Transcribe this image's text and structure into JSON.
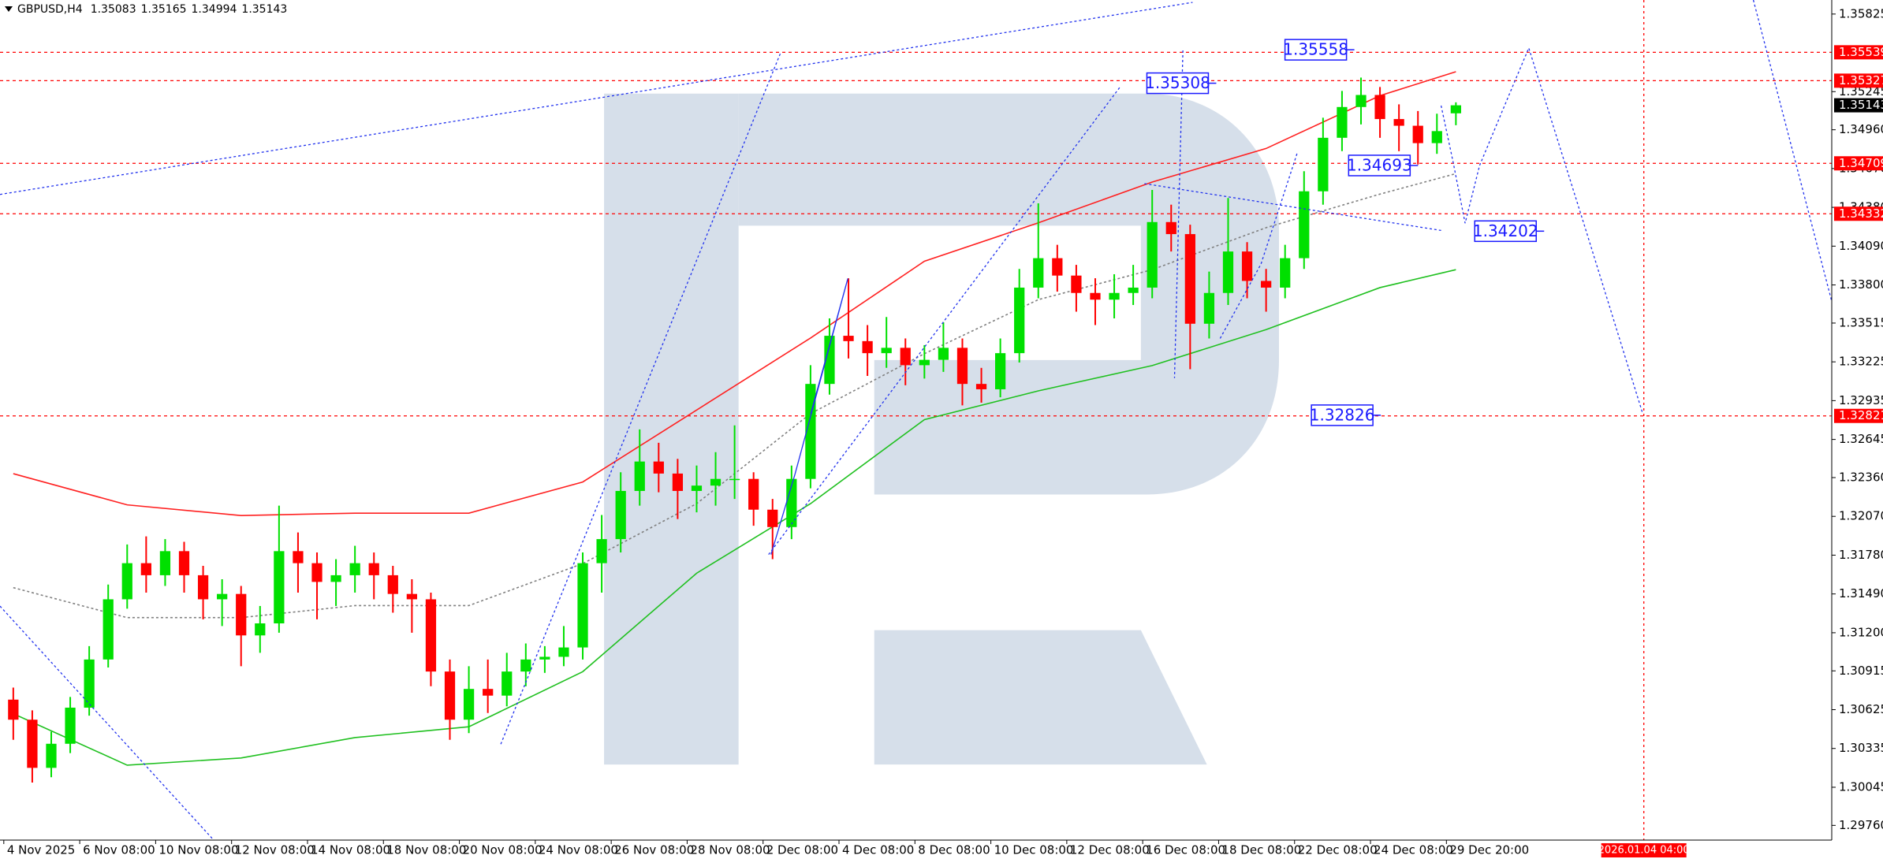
{
  "chart_data": {
    "type": "candlestick",
    "symbol": "GBPUSD,H4",
    "colors": {
      "up": "#00e000",
      "down": "#ff0000",
      "level": "#ff0000",
      "annotation": "#1a1aff"
    },
    "grid": false,
    "xlim": [
      -0.7,
      95.8
    ],
    "ylim": [
      1.2965,
      1.3593
    ],
    "open": [
      1.307,
      1.3055,
      1.3019,
      1.3037,
      1.3064,
      1.31,
      1.3145,
      1.3172,
      1.3163,
      1.3181,
      1.3163,
      1.3145,
      1.3149,
      1.3118,
      1.3127,
      1.3181,
      1.3172,
      1.3158,
      1.3163,
      1.3172,
      1.3163,
      1.3149,
      1.3145,
      1.3091,
      1.3055,
      1.3078,
      1.3073,
      1.3091,
      1.31,
      1.3102,
      1.3109,
      1.3172,
      1.319,
      1.3226,
      1.3248,
      1.3239,
      1.3226,
      1.323,
      1.3235,
      1.3235,
      1.3212,
      1.3199,
      1.3235,
      1.3306,
      1.3342,
      1.3338,
      1.3329,
      1.3333,
      1.332,
      1.3324,
      1.3333,
      1.3306,
      1.3302,
      1.3329,
      1.3378,
      1.34,
      1.3387,
      1.3374,
      1.3369,
      1.3374,
      1.3378,
      1.3427,
      1.3418,
      1.3351,
      1.3374,
      1.3405,
      1.3383,
      1.3378,
      1.34,
      1.345,
      1.349,
      1.3513,
      1.3522,
      1.3504,
      1.3499,
      1.3486,
      1.35083
    ],
    "high": [
      1.3079,
      1.3062,
      1.3046,
      1.3072,
      1.311,
      1.3156,
      1.3186,
      1.3192,
      1.319,
      1.3188,
      1.317,
      1.316,
      1.3155,
      1.314,
      1.3215,
      1.3195,
      1.318,
      1.3175,
      1.3185,
      1.318,
      1.317,
      1.316,
      1.315,
      1.31,
      1.3095,
      1.31,
      1.3105,
      1.3112,
      1.311,
      1.3125,
      1.318,
      1.3208,
      1.324,
      1.3272,
      1.3262,
      1.325,
      1.3245,
      1.3255,
      1.3275,
      1.324,
      1.322,
      1.3245,
      1.332,
      1.3355,
      1.3385,
      1.335,
      1.3356,
      1.334,
      1.3335,
      1.3352,
      1.334,
      1.3318,
      1.334,
      1.3392,
      1.3441,
      1.341,
      1.3395,
      1.3385,
      1.3388,
      1.3395,
      1.3451,
      1.344,
      1.3425,
      1.339,
      1.3445,
      1.3412,
      1.3392,
      1.341,
      1.3465,
      1.3505,
      1.3525,
      1.3535,
      1.3528,
      1.3515,
      1.351,
      1.3508,
      1.35165
    ],
    "low": [
      1.304,
      1.3008,
      1.3012,
      1.303,
      1.3058,
      1.3094,
      1.3138,
      1.315,
      1.3155,
      1.315,
      1.313,
      1.3125,
      1.3095,
      1.3105,
      1.312,
      1.315,
      1.313,
      1.314,
      1.315,
      1.3145,
      1.3135,
      1.312,
      1.308,
      1.304,
      1.3045,
      1.306,
      1.3065,
      1.308,
      1.309,
      1.3095,
      1.31,
      1.315,
      1.318,
      1.3215,
      1.3225,
      1.3205,
      1.321,
      1.3215,
      1.322,
      1.32,
      1.3175,
      1.319,
      1.3228,
      1.3298,
      1.3325,
      1.3312,
      1.3318,
      1.3305,
      1.331,
      1.3315,
      1.329,
      1.3292,
      1.3296,
      1.3322,
      1.337,
      1.3375,
      1.336,
      1.335,
      1.3355,
      1.3365,
      1.337,
      1.3405,
      1.3317,
      1.334,
      1.3365,
      1.337,
      1.336,
      1.337,
      1.3392,
      1.344,
      1.348,
      1.35,
      1.349,
      1.348,
      1.347,
      1.3478,
      1.34994
    ],
    "close": [
      1.3055,
      1.3019,
      1.3037,
      1.3064,
      1.31,
      1.3145,
      1.3172,
      1.3163,
      1.3181,
      1.3163,
      1.3145,
      1.3149,
      1.3118,
      1.3127,
      1.3181,
      1.3172,
      1.3158,
      1.3163,
      1.3172,
      1.3163,
      1.3149,
      1.3145,
      1.3091,
      1.3055,
      1.3078,
      1.3073,
      1.3091,
      1.31,
      1.3102,
      1.3109,
      1.3172,
      1.319,
      1.3226,
      1.3248,
      1.3239,
      1.3226,
      1.323,
      1.3235,
      1.3235,
      1.3212,
      1.3199,
      1.3235,
      1.3306,
      1.3342,
      1.3338,
      1.3329,
      1.3333,
      1.332,
      1.3324,
      1.3333,
      1.3306,
      1.3302,
      1.3329,
      1.3378,
      1.34,
      1.3387,
      1.3374,
      1.3369,
      1.3374,
      1.3378,
      1.3427,
      1.3418,
      1.3351,
      1.3374,
      1.3405,
      1.3383,
      1.3378,
      1.34,
      1.345,
      1.349,
      1.3513,
      1.3522,
      1.3504,
      1.3499,
      1.3486,
      1.3495,
      1.35143
    ],
    "ma_x": [
      0,
      6,
      12,
      18,
      24,
      30,
      36,
      42,
      48,
      54,
      60,
      66,
      72,
      76
    ],
    "moving_averages": [
      {
        "color": "#ff2020",
        "dash": false,
        "values": [
          1.32389,
          1.32156,
          1.32076,
          1.32094,
          1.32094,
          1.32327,
          1.32865,
          1.33403,
          1.33977,
          1.34264,
          1.34569,
          1.3482,
          1.35215,
          1.35394
        ]
      },
      {
        "color": "#20c020",
        "dash": false,
        "values": [
          1.30595,
          1.3021,
          1.30264,
          1.30416,
          1.30497,
          1.30909,
          1.31645,
          1.32165,
          1.32793,
          1.33008,
          1.33197,
          1.33466,
          1.3378,
          1.33914
        ]
      },
      {
        "color": "#808080",
        "dash": true,
        "values": [
          1.31537,
          1.31313,
          1.31313,
          1.31403,
          1.31403,
          1.31717,
          1.32165,
          1.32838,
          1.33286,
          1.3369,
          1.33914,
          1.34228,
          1.34479,
          1.34632
        ]
      }
    ],
    "yticks": [
      1.35825,
      1.35245,
      {
        "value": 1.3496,
        "label": "1.34960"
      },
      {
        "value": 1.3467,
        "label": "1.34670"
      },
      {
        "value": 1.3438,
        "label": "1.34380"
      },
      {
        "value": 1.3409,
        "label": "1.34090"
      },
      {
        "value": 1.338,
        "label": "1.33800"
      },
      1.33515,
      1.33225,
      1.32935,
      1.32645,
      {
        "value": 1.3236,
        "label": "1.32360"
      },
      {
        "value": 1.3207,
        "label": "1.32070"
      },
      {
        "value": 1.3178,
        "label": "1.31780"
      },
      {
        "value": 1.3149,
        "label": "1.31490"
      },
      {
        "value": 1.312,
        "label": "1.31200"
      },
      1.30915,
      1.30625,
      1.30335,
      1.30045,
      {
        "value": 1.2976,
        "label": "1.29760"
      }
    ],
    "xticks": [
      {
        "value": -0.5,
        "label": "4 Nov 2025"
      },
      {
        "value": 3.5,
        "label": "6 Nov 08:00"
      },
      {
        "value": 7.5,
        "label": "10 Nov 08:00"
      },
      {
        "value": 11.5,
        "label": "12 Nov 08:00"
      },
      {
        "value": 15.5,
        "label": "14 Nov 08:00"
      },
      {
        "value": 19.5,
        "label": "18 Nov 08:00"
      },
      {
        "value": 23.5,
        "label": "20 Nov 08:00"
      },
      {
        "value": 27.5,
        "label": "24 Nov 08:00"
      },
      {
        "value": 31.5,
        "label": "26 Nov 08:00"
      },
      {
        "value": 35.5,
        "label": "28 Nov 08:00"
      },
      {
        "value": 39.5,
        "label": "2 Dec 08:00"
      },
      {
        "value": 43.5,
        "label": "4 Dec 08:00"
      },
      {
        "value": 47.5,
        "label": "8 Dec 08:00"
      },
      {
        "value": 51.5,
        "label": "10 Dec 08:00"
      },
      {
        "value": 55.5,
        "label": "12 Dec 08:00"
      },
      {
        "value": 59.5,
        "label": "16 Dec 08:00"
      },
      {
        "value": 63.5,
        "label": "18 Dec 08:00"
      },
      {
        "value": 67.5,
        "label": "22 Dec 08:00"
      },
      {
        "value": 71.5,
        "label": "24 Dec 08:00"
      },
      {
        "value": 75.5,
        "label": "29 Dec 20:00"
      }
    ],
    "levels": [
      1.35539,
      1.35327,
      1.34709,
      1.34332,
      1.32821
    ],
    "annotations": [
      1.35558,
      1.35308,
      1.34693,
      1.34202,
      1.32826
    ],
    "date_marker": {
      "value": 85.9,
      "label": "2026.01.04 04:00"
    }
  }
}
